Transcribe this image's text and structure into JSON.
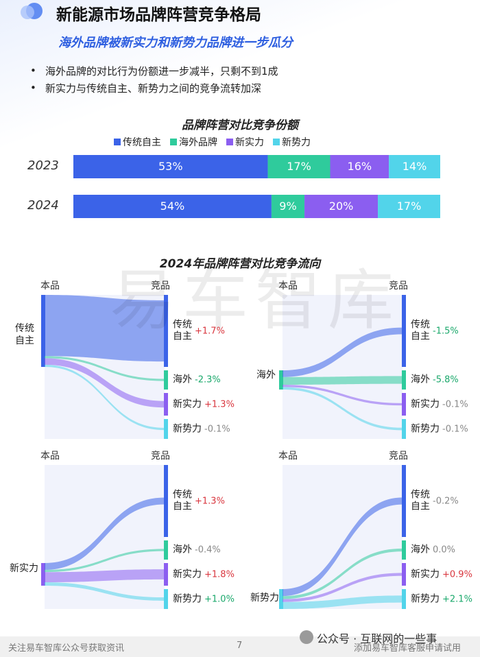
{
  "header": {
    "title": "新能源市场品牌阵营竞争格局",
    "subtitle": "海外品牌被新实力和新势力品牌进一步瓜分"
  },
  "bullets": [
    "海外品牌的对比行为份额进一步减半，只剩不到1成",
    "新实力与传统自主、新势力之间的竞争流转加深"
  ],
  "chart_data": [
    {
      "type": "bar",
      "orientation": "horizontal",
      "stacked": true,
      "title": "品牌阵营对比竞争份额",
      "categories": [
        "2023",
        "2024"
      ],
      "series": [
        {
          "name": "传统自主",
          "color": "#3b63e8",
          "values": [
            53,
            54
          ],
          "value_labels": [
            "53%",
            "54%"
          ]
        },
        {
          "name": "海外品牌",
          "color": "#2fcb9c",
          "values": [
            17,
            9
          ],
          "value_labels": [
            "17%",
            "9%"
          ]
        },
        {
          "name": "新实力",
          "color": "#8b5ef0",
          "values": [
            16,
            20
          ],
          "value_labels": [
            "16%",
            "20%"
          ]
        },
        {
          "name": "新势力",
          "color": "#52d4ea",
          "values": [
            14,
            17
          ],
          "value_labels": [
            "14%",
            "17%"
          ]
        }
      ]
    },
    {
      "type": "sankey",
      "title": "2024年品牌阵营对比竞争流向",
      "source_header": "本品",
      "target_header": "竞品",
      "colors": [
        "#3b63e8",
        "#2fcb9c",
        "#8b5ef0",
        "#52d4ea"
      ],
      "panels": [
        {
          "source": "传统自主",
          "targets": [
            "传统自主",
            "海外",
            "新实力",
            "新势力"
          ],
          "flows": [
            85,
            3,
            9,
            3
          ],
          "values": [
            1.7,
            -2.3,
            1.3,
            -0.1
          ],
          "value_labels": [
            "+1.7%",
            "-2.3%",
            "+1.3%",
            "-0.1%"
          ],
          "label_colors": [
            "#d9363e",
            "#1aa86b",
            "#d9363e",
            "#888888"
          ]
        },
        {
          "source": "海外",
          "targets": [
            "传统自主",
            "海外",
            "新实力",
            "新势力"
          ],
          "flows": [
            35,
            40,
            12,
            13
          ],
          "values": [
            -1.5,
            -5.8,
            -0.1,
            -0.1
          ],
          "value_labels": [
            "-1.5%",
            "-5.8%",
            "-0.1%",
            "-0.1%"
          ],
          "label_colors": [
            "#1aa86b",
            "#1aa86b",
            "#888888",
            "#888888"
          ]
        },
        {
          "source": "新实力",
          "targets": [
            "传统自主",
            "海外",
            "新实力",
            "新势力"
          ],
          "flows": [
            30,
            10,
            45,
            15
          ],
          "values": [
            1.3,
            -0.4,
            1.8,
            1.0
          ],
          "value_labels": [
            "+1.3%",
            "-0.4%",
            "+1.8%",
            "+1.0%"
          ],
          "label_colors": [
            "#d9363e",
            "#888888",
            "#d9363e",
            "#1aa86b"
          ]
        },
        {
          "source": "新势力",
          "targets": [
            "传统自主",
            "海外",
            "新实力",
            "新势力"
          ],
          "flows": [
            35,
            15,
            15,
            35
          ],
          "values": [
            -0.2,
            0.0,
            0.9,
            2.1
          ],
          "value_labels": [
            "-0.2%",
            "0.0%",
            "+0.9%",
            "+2.1%"
          ],
          "label_colors": [
            "#888888",
            "#888888",
            "#d9363e",
            "#1aa86b"
          ]
        }
      ]
    }
  ],
  "watermark": {
    "brand": "易车智库",
    "wechat": "公众号 · 互联网的一些事"
  },
  "footer": {
    "left": "关注易车智库公众号获取资讯",
    "page": "7",
    "right": "添加易车智库客服申请试用"
  }
}
